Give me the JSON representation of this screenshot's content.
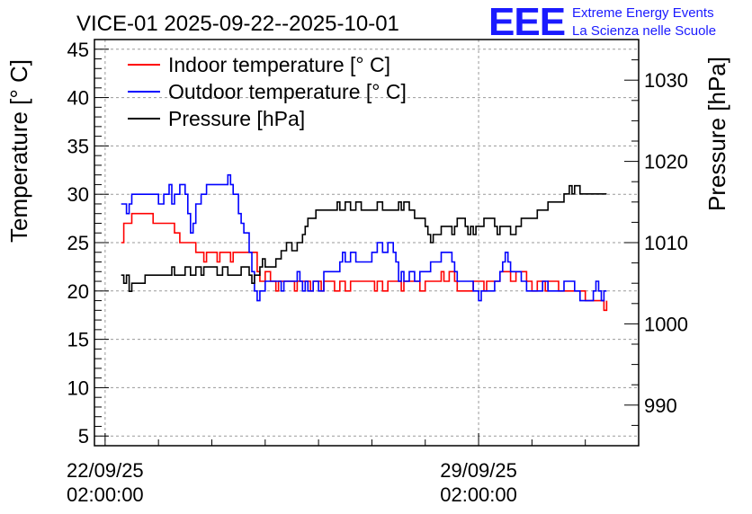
{
  "chart_data": {
    "type": "line",
    "title": "VICE-01 2025-09-22--2025-10-01",
    "ylabel_left": "Temperature [° C]",
    "ylabel_right": "Pressure [hPa]",
    "x_ticks": [
      {
        "day": 0,
        "line1": "22/09/25",
        "line2": "02:00:00"
      },
      {
        "day": 7,
        "line1": "29/09/25",
        "line2": "02:00:00"
      }
    ],
    "xlim_days": [
      -0.2,
      10.0
    ],
    "ylim_left": [
      4,
      46
    ],
    "yticks_left": [
      5,
      10,
      15,
      20,
      25,
      30,
      35,
      40,
      45
    ],
    "ylim_right": [
      985,
      1035
    ],
    "yticks_right": [
      990,
      1000,
      1010,
      1020,
      1030
    ],
    "grid": true,
    "legend": "top-left",
    "series": [
      {
        "name": "Indoor temperature [° C]",
        "color": "#ff0000",
        "axis": "left",
        "points": [
          [
            0.3,
            25
          ],
          [
            0.35,
            27
          ],
          [
            0.45,
            27
          ],
          [
            0.5,
            28
          ],
          [
            0.8,
            28
          ],
          [
            0.9,
            27
          ],
          [
            1.2,
            27
          ],
          [
            1.3,
            26
          ],
          [
            1.4,
            25
          ],
          [
            1.6,
            25
          ],
          [
            1.7,
            24
          ],
          [
            1.8,
            24
          ],
          [
            1.85,
            23
          ],
          [
            1.9,
            24
          ],
          [
            2.0,
            24
          ],
          [
            2.1,
            23
          ],
          [
            2.15,
            24
          ],
          [
            2.3,
            24
          ],
          [
            2.35,
            23
          ],
          [
            2.4,
            24
          ],
          [
            2.8,
            24
          ],
          [
            2.85,
            22
          ],
          [
            2.9,
            21
          ],
          [
            3.0,
            22
          ],
          [
            3.1,
            21
          ],
          [
            3.2,
            20
          ],
          [
            3.25,
            21
          ],
          [
            3.5,
            21
          ],
          [
            3.55,
            20
          ],
          [
            3.6,
            21
          ],
          [
            3.8,
            21
          ],
          [
            3.85,
            20
          ],
          [
            3.9,
            21
          ],
          [
            4.0,
            21
          ],
          [
            4.05,
            20
          ],
          [
            4.1,
            21
          ],
          [
            4.3,
            20
          ],
          [
            4.4,
            21
          ],
          [
            4.5,
            20
          ],
          [
            4.6,
            21
          ],
          [
            5.0,
            21
          ],
          [
            5.05,
            20
          ],
          [
            5.1,
            21
          ],
          [
            5.2,
            20
          ],
          [
            5.3,
            21
          ],
          [
            5.5,
            21
          ],
          [
            5.55,
            20
          ],
          [
            5.6,
            21
          ],
          [
            5.8,
            21
          ],
          [
            5.9,
            20
          ],
          [
            6.0,
            21
          ],
          [
            6.2,
            21
          ],
          [
            6.3,
            22
          ],
          [
            6.35,
            21
          ],
          [
            6.45,
            22
          ],
          [
            6.5,
            22
          ],
          [
            6.55,
            21
          ],
          [
            6.6,
            20
          ],
          [
            6.8,
            20
          ],
          [
            6.9,
            21
          ],
          [
            7.0,
            21
          ],
          [
            7.1,
            20
          ],
          [
            7.15,
            21
          ],
          [
            7.3,
            21
          ],
          [
            7.4,
            22
          ],
          [
            7.5,
            22
          ],
          [
            7.6,
            21
          ],
          [
            7.7,
            22
          ],
          [
            7.8,
            22
          ],
          [
            7.9,
            21
          ],
          [
            8.0,
            20
          ],
          [
            8.1,
            21
          ],
          [
            8.2,
            21
          ],
          [
            8.25,
            20
          ],
          [
            8.3,
            21
          ],
          [
            8.4,
            21
          ],
          [
            8.5,
            20
          ],
          [
            8.9,
            20
          ],
          [
            9.0,
            19
          ],
          [
            9.3,
            19
          ],
          [
            9.35,
            18
          ],
          [
            9.4,
            19
          ]
        ]
      },
      {
        "name": "Outdoor temperature [° C]",
        "color": "#0000ff",
        "axis": "left",
        "points": [
          [
            0.3,
            29
          ],
          [
            0.35,
            29
          ],
          [
            0.4,
            28
          ],
          [
            0.45,
            29
          ],
          [
            0.5,
            30
          ],
          [
            0.9,
            30
          ],
          [
            1.0,
            29
          ],
          [
            1.1,
            30
          ],
          [
            1.2,
            31
          ],
          [
            1.25,
            29
          ],
          [
            1.3,
            30
          ],
          [
            1.4,
            31
          ],
          [
            1.5,
            30
          ],
          [
            1.55,
            28
          ],
          [
            1.6,
            26
          ],
          [
            1.65,
            27
          ],
          [
            1.7,
            29
          ],
          [
            1.8,
            30
          ],
          [
            1.9,
            31
          ],
          [
            2.2,
            31
          ],
          [
            2.3,
            32
          ],
          [
            2.35,
            31
          ],
          [
            2.4,
            30
          ],
          [
            2.5,
            28
          ],
          [
            2.55,
            27
          ],
          [
            2.6,
            26
          ],
          [
            2.7,
            24
          ],
          [
            2.75,
            22
          ],
          [
            2.8,
            20
          ],
          [
            2.85,
            19
          ],
          [
            2.9,
            20
          ],
          [
            3.0,
            21
          ],
          [
            3.2,
            21
          ],
          [
            3.3,
            20
          ],
          [
            3.35,
            21
          ],
          [
            3.5,
            21
          ],
          [
            3.6,
            22
          ],
          [
            3.65,
            21
          ],
          [
            3.7,
            20
          ],
          [
            3.75,
            21
          ],
          [
            3.8,
            20
          ],
          [
            3.9,
            21
          ],
          [
            4.0,
            20
          ],
          [
            4.1,
            22
          ],
          [
            4.3,
            22
          ],
          [
            4.4,
            23
          ],
          [
            4.45,
            24
          ],
          [
            4.5,
            23
          ],
          [
            4.6,
            24
          ],
          [
            4.7,
            23
          ],
          [
            4.9,
            23
          ],
          [
            5.0,
            24
          ],
          [
            5.1,
            25
          ],
          [
            5.2,
            24
          ],
          [
            5.3,
            25
          ],
          [
            5.4,
            24
          ],
          [
            5.45,
            23
          ],
          [
            5.5,
            21
          ],
          [
            5.55,
            22
          ],
          [
            5.6,
            21
          ],
          [
            5.7,
            22
          ],
          [
            5.8,
            21
          ],
          [
            5.9,
            22
          ],
          [
            6.0,
            22
          ],
          [
            6.1,
            23
          ],
          [
            6.2,
            23
          ],
          [
            6.3,
            24
          ],
          [
            6.4,
            24
          ],
          [
            6.5,
            23
          ],
          [
            6.55,
            22
          ],
          [
            6.6,
            21
          ],
          [
            6.8,
            21
          ],
          [
            6.9,
            20
          ],
          [
            7.0,
            19
          ],
          [
            7.05,
            20
          ],
          [
            7.2,
            20
          ],
          [
            7.3,
            21
          ],
          [
            7.4,
            22
          ],
          [
            7.45,
            23
          ],
          [
            7.5,
            24
          ],
          [
            7.55,
            23
          ],
          [
            7.6,
            22
          ],
          [
            7.7,
            22
          ],
          [
            7.8,
            21
          ],
          [
            7.9,
            20
          ],
          [
            8.1,
            20
          ],
          [
            8.2,
            21
          ],
          [
            8.3,
            20
          ],
          [
            8.5,
            20
          ],
          [
            8.6,
            21
          ],
          [
            8.7,
            21
          ],
          [
            8.8,
            20
          ],
          [
            8.9,
            19
          ],
          [
            9.1,
            19
          ],
          [
            9.15,
            20
          ],
          [
            9.2,
            21
          ],
          [
            9.25,
            20
          ],
          [
            9.3,
            19
          ],
          [
            9.35,
            20
          ],
          [
            9.4,
            20
          ]
        ]
      },
      {
        "name": "Pressure [hPa]",
        "color": "#000000",
        "axis": "right",
        "points": [
          [
            0.3,
            1006
          ],
          [
            0.35,
            1005
          ],
          [
            0.4,
            1006
          ],
          [
            0.45,
            1004
          ],
          [
            0.5,
            1005
          ],
          [
            0.7,
            1005
          ],
          [
            0.75,
            1006
          ],
          [
            1.2,
            1006
          ],
          [
            1.25,
            1007
          ],
          [
            1.3,
            1006
          ],
          [
            1.4,
            1006
          ],
          [
            1.5,
            1007
          ],
          [
            1.6,
            1006
          ],
          [
            1.7,
            1007
          ],
          [
            1.8,
            1006
          ],
          [
            1.85,
            1007
          ],
          [
            2.0,
            1007
          ],
          [
            2.1,
            1006
          ],
          [
            2.2,
            1007
          ],
          [
            2.3,
            1006
          ],
          [
            2.5,
            1006
          ],
          [
            2.55,
            1007
          ],
          [
            2.7,
            1006
          ],
          [
            2.75,
            1005
          ],
          [
            2.8,
            1006
          ],
          [
            2.9,
            1007
          ],
          [
            2.95,
            1008
          ],
          [
            3.0,
            1007
          ],
          [
            3.2,
            1008
          ],
          [
            3.3,
            1009
          ],
          [
            3.4,
            1010
          ],
          [
            3.5,
            1009
          ],
          [
            3.6,
            1010
          ],
          [
            3.7,
            1011
          ],
          [
            3.75,
            1012
          ],
          [
            3.8,
            1013
          ],
          [
            3.9,
            1013
          ],
          [
            3.95,
            1014
          ],
          [
            4.3,
            1014
          ],
          [
            4.35,
            1015
          ],
          [
            4.4,
            1014
          ],
          [
            4.5,
            1015
          ],
          [
            4.6,
            1014
          ],
          [
            4.7,
            1015
          ],
          [
            4.8,
            1014
          ],
          [
            5.0,
            1014
          ],
          [
            5.1,
            1015
          ],
          [
            5.2,
            1014
          ],
          [
            5.4,
            1014
          ],
          [
            5.5,
            1015
          ],
          [
            5.55,
            1014
          ],
          [
            5.6,
            1015
          ],
          [
            5.7,
            1014
          ],
          [
            5.8,
            1013
          ],
          [
            5.9,
            1013
          ],
          [
            6.0,
            1012
          ],
          [
            6.05,
            1011
          ],
          [
            6.1,
            1010
          ],
          [
            6.15,
            1011
          ],
          [
            6.2,
            1011
          ],
          [
            6.3,
            1012
          ],
          [
            6.4,
            1012
          ],
          [
            6.5,
            1011
          ],
          [
            6.55,
            1012
          ],
          [
            6.6,
            1013
          ],
          [
            6.7,
            1013
          ],
          [
            6.75,
            1012
          ],
          [
            6.8,
            1011
          ],
          [
            6.85,
            1012
          ],
          [
            6.9,
            1011
          ],
          [
            6.95,
            1012
          ],
          [
            7.0,
            1012
          ],
          [
            7.1,
            1013
          ],
          [
            7.2,
            1013
          ],
          [
            7.3,
            1012
          ],
          [
            7.35,
            1011
          ],
          [
            7.4,
            1012
          ],
          [
            7.6,
            1011
          ],
          [
            7.7,
            1012
          ],
          [
            7.8,
            1013
          ],
          [
            8.0,
            1013
          ],
          [
            8.1,
            1014
          ],
          [
            8.2,
            1014
          ],
          [
            8.3,
            1015
          ],
          [
            8.5,
            1015
          ],
          [
            8.6,
            1016
          ],
          [
            8.7,
            1017
          ],
          [
            8.75,
            1016
          ],
          [
            8.8,
            1017
          ],
          [
            8.9,
            1016
          ],
          [
            9.0,
            1016
          ],
          [
            9.1,
            1016
          ],
          [
            9.4,
            1016
          ]
        ]
      }
    ]
  },
  "branding": {
    "logo_letters": "EEE",
    "line1": "Extreme Energy Events",
    "line2": "La Scienza nelle Scuole"
  },
  "colors": {
    "logo": "#1a1aff",
    "grid": "#9a9a9a"
  }
}
